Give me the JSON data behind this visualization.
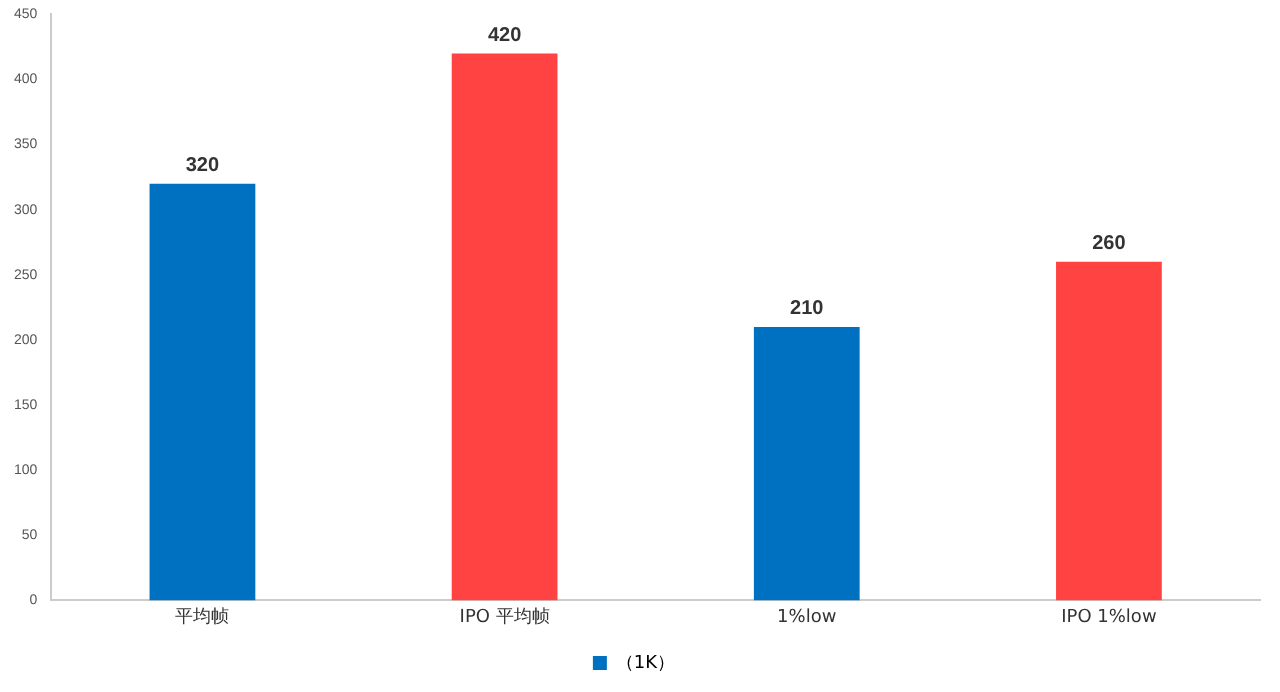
{
  "chart_data": {
    "type": "bar",
    "categories": [
      "平均帧",
      "IPO 平均帧",
      "1%low",
      "IPO 1%low"
    ],
    "series": [
      {
        "name": "（1K）",
        "color": "#0070c0",
        "colors": [
          "#0070c0",
          "#ff4343",
          "#0070c0",
          "#ff4343"
        ],
        "values": [
          320,
          420,
          210,
          260
        ]
      }
    ],
    "ylim": [
      0,
      450
    ],
    "yticks": [
      0,
      50,
      100,
      150,
      200,
      250,
      300,
      350,
      400,
      450
    ],
    "grid": false,
    "legend": "bottom",
    "data_labels": true
  }
}
